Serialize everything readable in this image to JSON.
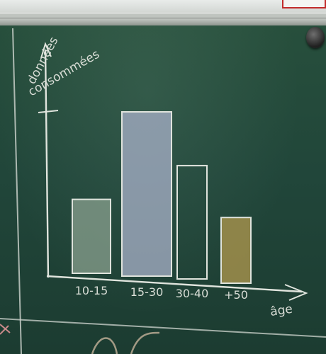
{
  "chalkboard": {
    "ylabel_line1": "données",
    "ylabel_line2": "consommées",
    "xlabel": "âge"
  },
  "chart_data": {
    "type": "bar",
    "categories": [
      "10-15",
      "15-30",
      "30-40",
      "+50"
    ],
    "values": [
      0.45,
      1.0,
      0.69,
      0.4
    ],
    "title": "",
    "xlabel": "âge",
    "ylabel": "données consommées",
    "ylim": [
      0,
      1.1
    ],
    "grid": false,
    "legend": "none",
    "bar_fills": [
      "#8aa08f",
      "#a9b2c9",
      "none",
      "#b39a4f"
    ]
  },
  "colors": {
    "board": "#21463a",
    "chalk": "#d9ddd6"
  }
}
